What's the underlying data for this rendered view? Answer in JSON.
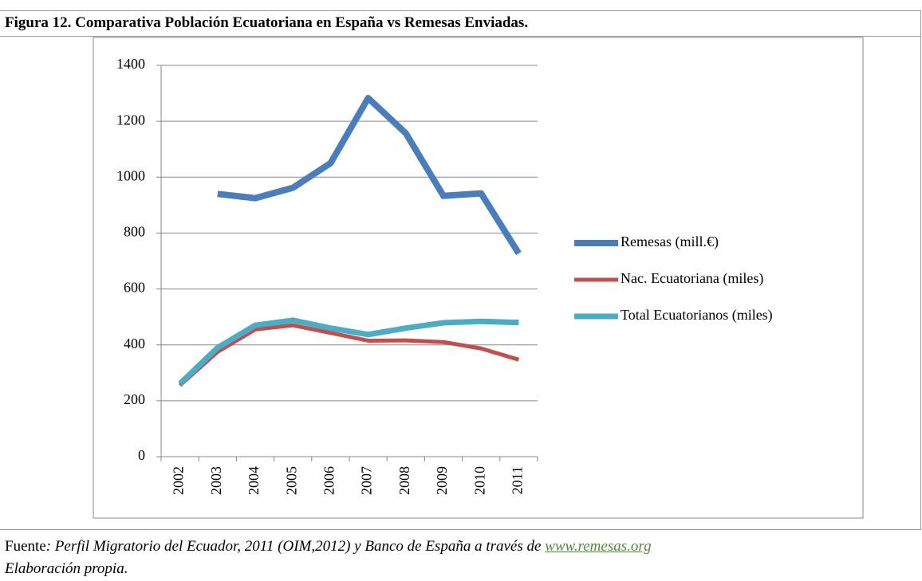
{
  "chart_data": {
    "type": "line",
    "title": "Figura 12. Comparativa Población Ecuatoriana en España vs Remesas Enviadas.",
    "categories": [
      "2002",
      "2003",
      "2004",
      "2005",
      "2006",
      "2007",
      "2008",
      "2009",
      "2010",
      "2011"
    ],
    "series": [
      {
        "name": "Remesas (mill.€)",
        "color": "#4a7ebb",
        "values": [
          null,
          940,
          925,
          962,
          1050,
          1283,
          1157,
          933,
          942,
          727
        ]
      },
      {
        "name": "Nac. Ecuatoriana (miles)",
        "color": "#c0504d",
        "values": [
          255,
          375,
          455,
          470,
          443,
          415,
          416,
          410,
          387,
          347
        ]
      },
      {
        "name": "Total Ecuatorianos (miles)",
        "color": "#4bacc6",
        "values": [
          261,
          390,
          470,
          488,
          460,
          437,
          460,
          479,
          484,
          480
        ]
      }
    ],
    "ylim": [
      0,
      1400
    ],
    "yticks": [
      0,
      200,
      400,
      600,
      800,
      1000,
      1200,
      1400
    ],
    "grid": true,
    "legend": "right"
  },
  "source": {
    "label": "Fuente",
    "text": ": Perfil Migratorio del Ecuador, 2011 (OIM,2012) y Banco de España a través de",
    "link": "www.remesas.org",
    "note": "Elaboración propia."
  }
}
